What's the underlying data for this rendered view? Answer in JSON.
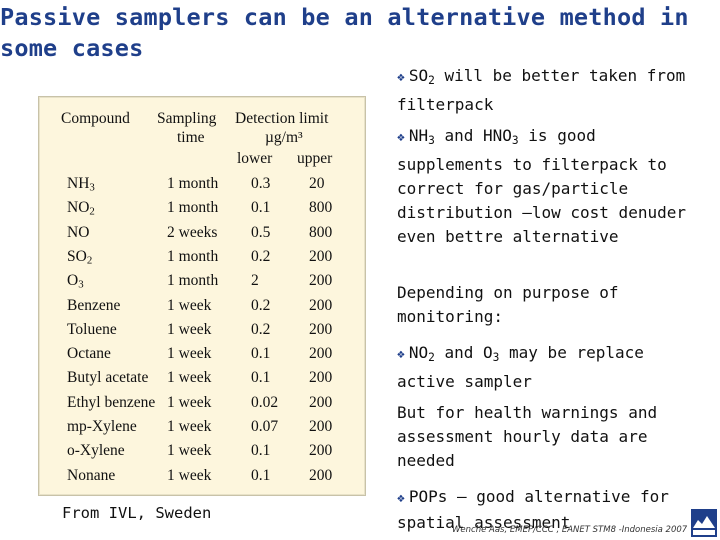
{
  "title": "Passive samplers can be an alternative method in some cases",
  "table": {
    "headers": {
      "compound": "Compound",
      "sampling_line1": "Sampling",
      "sampling_line2": "time",
      "detection_line1": "Detection limit",
      "detection_unit": "µg/m³",
      "lower": "lower",
      "upper": "upper"
    },
    "rows": [
      {
        "compound": "NH",
        "sub": "3",
        "time": "1 month",
        "lower": "0.3",
        "upper": "20"
      },
      {
        "compound": "NO",
        "sub": "2",
        "time": "1 month",
        "lower": "0.1",
        "upper": "800"
      },
      {
        "compound": "NO",
        "sub": "",
        "time": "2 weeks",
        "lower": "0.5",
        "upper": "800"
      },
      {
        "compound": "SO",
        "sub": "2",
        "time": "1 month",
        "lower": "0.2",
        "upper": "200"
      },
      {
        "compound": "O",
        "sub": "3",
        "time": "1 month",
        "lower": "2",
        "upper": "200"
      },
      {
        "compound": "Benzene",
        "sub": "",
        "time": "1 week",
        "lower": "0.2",
        "upper": "200"
      },
      {
        "compound": "Toluene",
        "sub": "",
        "time": "1 week",
        "lower": "0.2",
        "upper": "200"
      },
      {
        "compound": "Octane",
        "sub": "",
        "time": "1 week",
        "lower": "0.1",
        "upper": "200"
      },
      {
        "compound": "Butyl acetate",
        "sub": "",
        "time": "1 week",
        "lower": "0.1",
        "upper": "200"
      },
      {
        "compound": "Ethyl benzene",
        "sub": "",
        "time": "1 week",
        "lower": "0.02",
        "upper": "200"
      },
      {
        "compound": "mp-Xylene",
        "sub": "",
        "time": "1 week",
        "lower": "0.07",
        "upper": "200"
      },
      {
        "compound": "o-Xylene",
        "sub": "",
        "time": "1 week",
        "lower": "0.1",
        "upper": "200"
      },
      {
        "compound": "Nonane",
        "sub": "",
        "time": "1 week",
        "lower": "0.1",
        "upper": "200"
      }
    ]
  },
  "source": "From IVL, Sweden",
  "bullets": {
    "so2_prefix": "SO",
    "so2_sub": "2",
    "so2_text": " will be better taken from filterpack",
    "nh3_prefix": "NH",
    "nh3_sub": "3",
    "nh3_mid": " and HNO",
    "hno3_sub": "3",
    "nh3_text": " is good supplements to filterpack to correct for gas/particle distribution –low cost denuder even bettre alternative",
    "depending": "Depending on purpose of monitoring:",
    "no2_prefix": "NO",
    "no2_sub": "2",
    "no2_mid": " and O",
    "o3_sub": "3",
    "no2_text": " may be replace active sampler",
    "health": "But for health warnings and assessment hourly data are needed",
    "pops": "POPs – good alternative for spatial assessment"
  },
  "footer": "Wenche Aas, EMEP/CCC , EANET STM8 -Indonesia 2007",
  "colors": {
    "title": "#1f3f8a",
    "table_bg": "#fdf6dd"
  },
  "icons": {
    "bullet": "diamond-bullet-icon",
    "logo": "nilu-logo"
  }
}
